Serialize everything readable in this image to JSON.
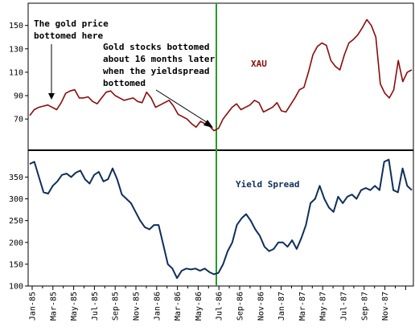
{
  "chart_data": [
    {
      "type": "line",
      "panel": "top",
      "title": "",
      "series": [
        {
          "name": "XAU",
          "color": "#8b0a0a",
          "values": [
            73,
            78,
            80,
            81,
            82,
            80,
            78,
            84,
            92,
            94,
            95,
            88,
            88,
            89,
            85,
            83,
            88,
            93,
            94,
            90,
            88,
            86,
            87,
            88,
            85,
            84,
            93,
            88,
            80,
            82,
            84,
            86,
            81,
            74,
            72,
            70,
            66,
            63,
            68,
            66,
            64,
            60,
            62,
            70,
            75,
            80,
            83,
            78,
            80,
            82,
            86,
            84,
            76,
            78,
            80,
            84,
            77,
            76,
            82,
            88,
            95,
            97,
            110,
            125,
            132,
            135,
            133,
            120,
            115,
            112,
            125,
            135,
            138,
            142,
            148,
            155,
            150,
            140,
            100,
            92,
            88,
            95,
            120,
            102,
            110,
            112
          ]
        }
      ],
      "labels": {
        "x": [
          "Jan-85",
          "Mar-85",
          "May-85",
          "Jul-85",
          "Sep-85",
          "Nov-85",
          "Jan-86",
          "Mar-86",
          "May-86",
          "Jul-86",
          "Sep-86",
          "Nov-86",
          "Jan-87",
          "Mar-87",
          "May-87",
          "Jul-87",
          "Sep-87",
          "Nov-87"
        ]
      },
      "yticks": [
        "70",
        "90",
        "110",
        "130",
        "150"
      ],
      "ylim": [
        55,
        158
      ],
      "grid": false
    },
    {
      "type": "line",
      "panel": "bottom",
      "title": "",
      "series": [
        {
          "name": "Yield Spread",
          "color": "#0f2f5a",
          "values": [
            380,
            385,
            350,
            315,
            312,
            330,
            340,
            355,
            358,
            350,
            360,
            365,
            345,
            335,
            355,
            362,
            340,
            345,
            370,
            345,
            310,
            300,
            290,
            270,
            250,
            235,
            230,
            240,
            240,
            195,
            150,
            140,
            118,
            135,
            140,
            138,
            140,
            135,
            140,
            132,
            127,
            130,
            150,
            180,
            200,
            240,
            255,
            265,
            250,
            230,
            215,
            190,
            180,
            185,
            200,
            200,
            190,
            205,
            185,
            210,
            240,
            290,
            300,
            330,
            300,
            280,
            270,
            305,
            290,
            305,
            310,
            300,
            320,
            325,
            320,
            330,
            320,
            385,
            390,
            320,
            315,
            370,
            330,
            320
          ]
        }
      ],
      "labels": {
        "x": [
          "Jan-85",
          "Mar-85",
          "May-85",
          "Jul-85",
          "Sep-85",
          "Nov-85",
          "Jan-86",
          "Mar-86",
          "May-86",
          "Jul-86",
          "Sep-86",
          "Nov-86",
          "Jan-87",
          "Mar-87",
          "May-87",
          "Jul-87",
          "Sep-87",
          "Nov-87"
        ]
      },
      "yticks": [
        "100",
        "150",
        "200",
        "250",
        "300",
        "350"
      ],
      "ylim": [
        100,
        395
      ],
      "grid": false
    }
  ],
  "annotations": {
    "gold_price": [
      "The gold price",
      "bottomed here"
    ],
    "gold_stocks": [
      "Gold stocks bottomed",
      "about 16 months later",
      "when the yieldspread",
      "bottomed"
    ]
  },
  "colors": {
    "border": "#000000",
    "divider": "#000000",
    "marker_line": "#2a9a2a",
    "arrow": "#000000",
    "background": "#ffffff"
  }
}
